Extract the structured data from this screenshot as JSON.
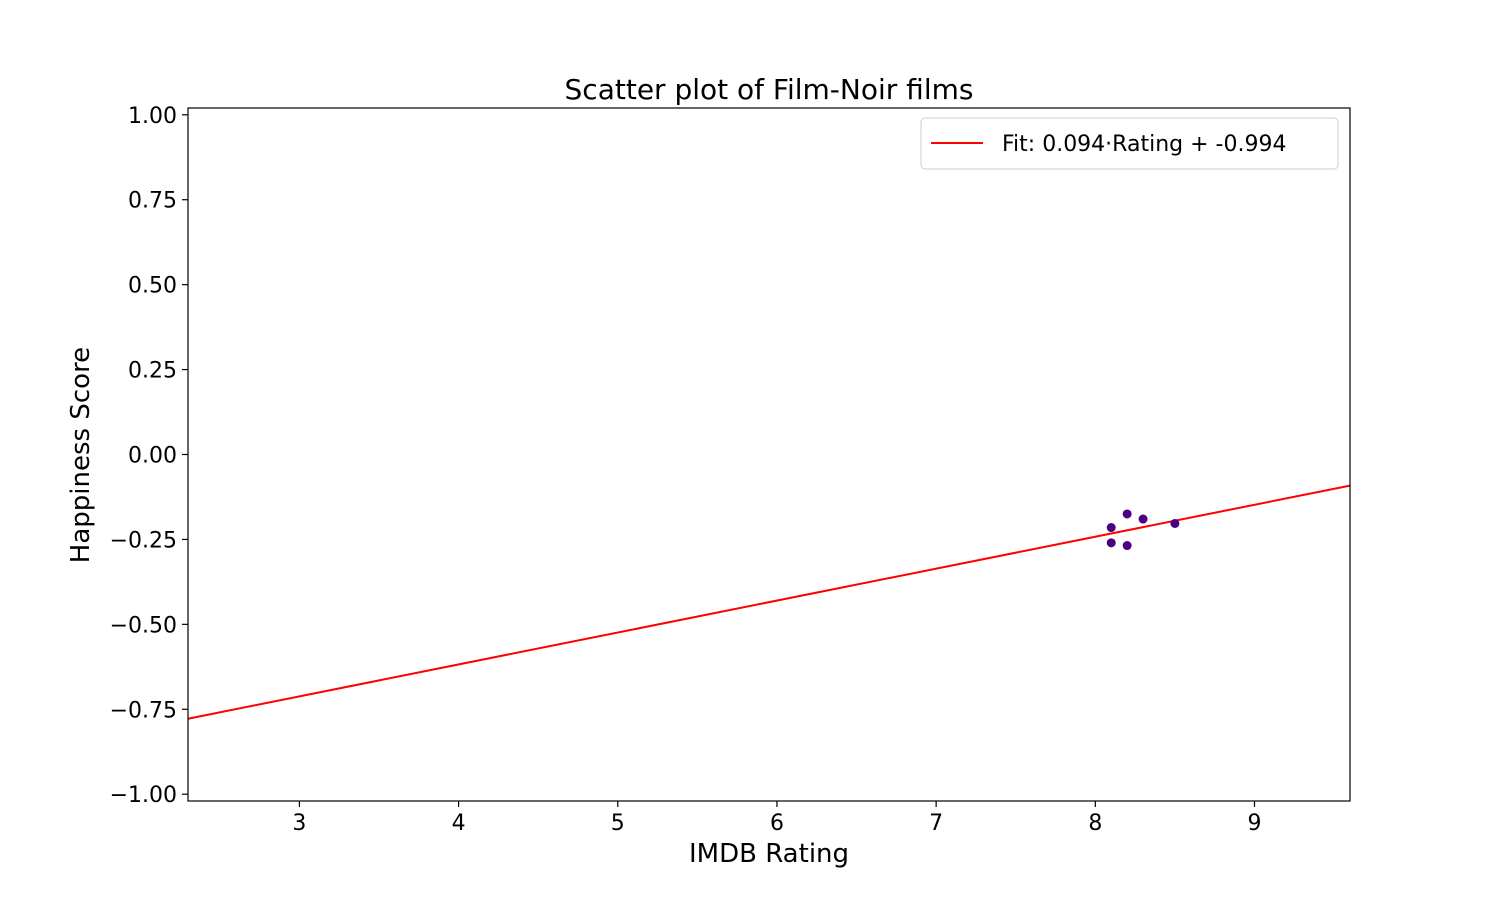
{
  "chart_data": {
    "type": "scatter",
    "title": "Scatter plot of Film-Noir films",
    "xlabel": "IMDB Rating",
    "ylabel": "Happiness Score",
    "xlim": [
      2.3,
      9.6
    ],
    "ylim": [
      -1.02,
      1.02
    ],
    "xticks": [
      {
        "value": 3,
        "label": "3"
      },
      {
        "value": 4,
        "label": "4"
      },
      {
        "value": 5,
        "label": "5"
      },
      {
        "value": 6,
        "label": "6"
      },
      {
        "value": 7,
        "label": "7"
      },
      {
        "value": 8,
        "label": "8"
      },
      {
        "value": 9,
        "label": "9"
      }
    ],
    "yticks": [
      {
        "value": 1.0,
        "label": "1.00"
      },
      {
        "value": 0.75,
        "label": "0.75"
      },
      {
        "value": 0.5,
        "label": "0.50"
      },
      {
        "value": 0.25,
        "label": "0.25"
      },
      {
        "value": 0.0,
        "label": "0.00"
      },
      {
        "value": -0.25,
        "label": "−0.25"
      },
      {
        "value": -0.5,
        "label": "−0.50"
      },
      {
        "value": -0.75,
        "label": "−0.75"
      },
      {
        "value": -1.0,
        "label": "−1.00"
      }
    ],
    "points": [
      {
        "x": 8.1,
        "y": -0.215
      },
      {
        "x": 8.1,
        "y": -0.26
      },
      {
        "x": 8.2,
        "y": -0.175
      },
      {
        "x": 8.2,
        "y": -0.268
      },
      {
        "x": 8.3,
        "y": -0.19
      },
      {
        "x": 8.5,
        "y": -0.203
      }
    ],
    "point_color": "#4b0082",
    "fit": {
      "slope": 0.094,
      "intercept": -0.994,
      "label": "Fit: 0.094·Rating + -0.994",
      "color": "#ff0000"
    },
    "legend_position": "top-right",
    "grid": false
  }
}
